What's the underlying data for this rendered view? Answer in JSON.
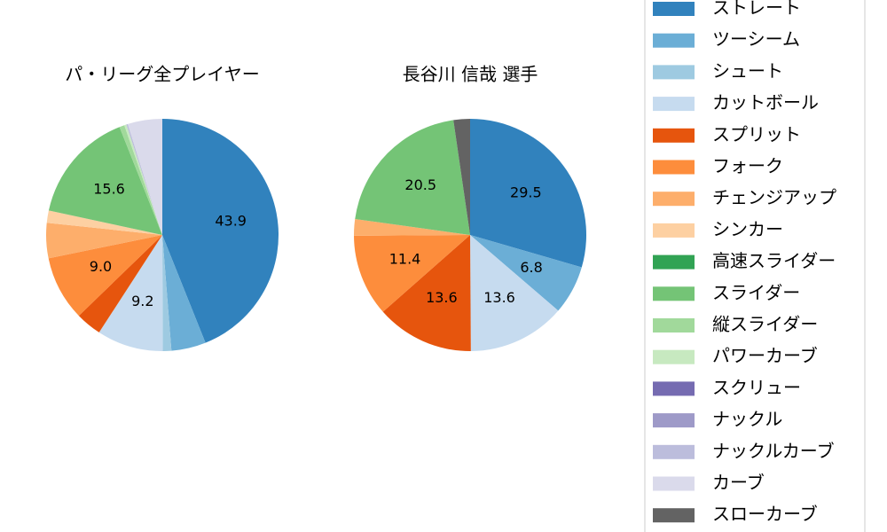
{
  "chart_data": [
    {
      "type": "pie",
      "title": "パ・リーグ全プレイヤー",
      "categories": [
        "ストレート",
        "ツーシーム",
        "シュート",
        "カットボール",
        "スプリット",
        "フォーク",
        "チェンジアップ",
        "シンカー",
        "高速スライダー",
        "スライダー",
        "縦スライダー",
        "パワーカーブ",
        "スクリュー",
        "ナックル",
        "ナックルカーブ",
        "カーブ",
        "スローカーブ"
      ],
      "colors": [
        "#3182bd",
        "#6baed6",
        "#9ecae1",
        "#c6dbef",
        "#e6550d",
        "#fd8d3c",
        "#fdae6b",
        "#fdd0a2",
        "#31a354",
        "#74c476",
        "#a1d99b",
        "#c7e9c0",
        "#756bb1",
        "#9e9ac8",
        "#bcbddc",
        "#dadaeb",
        "#636363"
      ],
      "values": [
        43.9,
        4.8,
        1.2,
        9.2,
        3.6,
        9.0,
        4.9,
        1.7,
        0,
        15.6,
        0.7,
        0.3,
        0,
        0,
        0.2,
        4.8,
        0
      ],
      "value_labels": [
        "43.9",
        null,
        null,
        "9.2",
        null,
        "9.0",
        null,
        null,
        null,
        "15.6",
        null,
        null,
        null,
        null,
        null,
        null,
        null
      ]
    },
    {
      "type": "pie",
      "title": "長谷川 信哉  選手",
      "categories": [
        "ストレート",
        "ツーシーム",
        "シュート",
        "カットボール",
        "スプリット",
        "フォーク",
        "チェンジアップ",
        "シンカー",
        "高速スライダー",
        "スライダー",
        "縦スライダー",
        "パワーカーブ",
        "スクリュー",
        "ナックル",
        "ナックルカーブ",
        "カーブ",
        "スローカーブ"
      ],
      "colors": [
        "#3182bd",
        "#6baed6",
        "#9ecae1",
        "#c6dbef",
        "#e6550d",
        "#fd8d3c",
        "#fdae6b",
        "#fdd0a2",
        "#31a354",
        "#74c476",
        "#a1d99b",
        "#c7e9c0",
        "#756bb1",
        "#9e9ac8",
        "#bcbddc",
        "#dadaeb",
        "#636363"
      ],
      "values": [
        29.5,
        6.8,
        0,
        13.6,
        13.6,
        11.4,
        2.3,
        0,
        0,
        20.5,
        0,
        0,
        0,
        0,
        0,
        0,
        2.3
      ],
      "value_labels": [
        "29.5",
        "6.8",
        null,
        "13.6",
        "13.6",
        "11.4",
        null,
        null,
        null,
        "20.5",
        null,
        null,
        null,
        null,
        null,
        null,
        null
      ]
    }
  ]
}
